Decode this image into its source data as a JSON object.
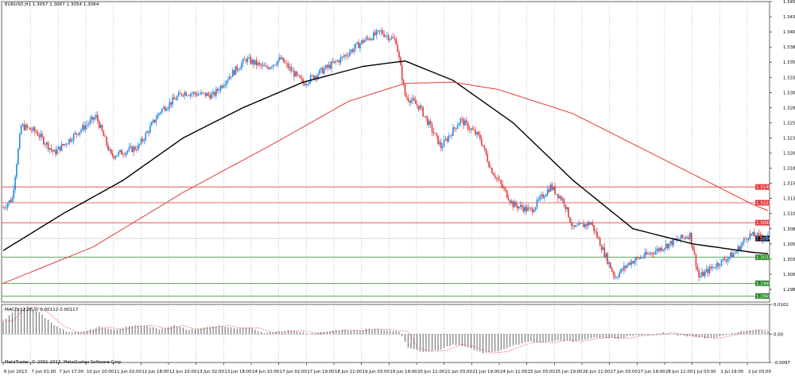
{
  "chart_data": {
    "type": "candlestick",
    "header": "EURUSD,H1  1.3057 1.3067 1.3054 1.3064",
    "price_axis": {
      "ylim": [
        1.2959,
        1.3455
      ],
      "ticks": [
        "1.3455",
        "1.3430",
        "1.3405",
        "1.3380",
        "1.3355",
        "1.3330",
        "1.3305",
        "1.3280",
        "1.3255",
        "1.3230",
        "1.3205",
        "1.3180",
        "1.3155",
        "1.3130",
        "1.3105",
        "1.3080",
        "1.3055",
        "1.3030",
        "1.3005",
        "1.2980"
      ]
    },
    "time_axis": {
      "ticks": [
        "6 Jun 2013",
        "7 Jun 01:00",
        "7 Jun 17:00",
        "10 Jun 10:00",
        "11 Jun 02:00",
        "11 Jun 18:00",
        "12 Jun 10:00",
        "13 Jun 02:00",
        "13 Jun 18:00",
        "14 Jun 10:00",
        "17 Jun 02:00",
        "17 Jun 19:00",
        "18 Jun 11:00",
        "19 Jun 03:00",
        "19 Jun 19:00",
        "20 Jun 11:00",
        "21 Jun 03:00",
        "21 Jun 19:00",
        "24 Jun 11:00",
        "25 Jun 03:00",
        "25 Jun 19:00",
        "26 Jun 11:00",
        "27 Jun 03:00",
        "27 Jun 19:00",
        "28 Jun 11:00",
        "1 Jul 03:00",
        "1 Jul 19:00",
        "2 Jul 03:00"
      ]
    },
    "grid": true,
    "horizontal_levels": [
      {
        "label": "1.3149",
        "value": 1.3149,
        "color": "#e23b3b"
      },
      {
        "label": "1.3123",
        "value": 1.3123,
        "color": "#e23b3b"
      },
      {
        "label": "1.3090",
        "value": 1.309,
        "color": "#e23b3b"
      },
      {
        "label": "1.3033",
        "value": 1.3033,
        "color": "#2e8b2e"
      },
      {
        "label": "1.2990",
        "value": 1.299,
        "color": "#2e8b2e"
      },
      {
        "label": "1.2969",
        "value": 1.2969,
        "color": "#2e8b2e"
      }
    ],
    "current_price": {
      "label": "1.3064",
      "value": 1.3064
    },
    "candles_keypoints": [
      [
        0,
        1.3115
      ],
      [
        6,
        1.313
      ],
      [
        12,
        1.325
      ],
      [
        22,
        1.324
      ],
      [
        34,
        1.3205
      ],
      [
        50,
        1.324
      ],
      [
        62,
        1.3265
      ],
      [
        72,
        1.32
      ],
      [
        90,
        1.3215
      ],
      [
        105,
        1.3275
      ],
      [
        120,
        1.3305
      ],
      [
        140,
        1.33
      ],
      [
        150,
        1.333
      ],
      [
        162,
        1.336
      ],
      [
        175,
        1.3345
      ],
      [
        185,
        1.336
      ],
      [
        200,
        1.332
      ],
      [
        212,
        1.334
      ],
      [
        225,
        1.336
      ],
      [
        240,
        1.339
      ],
      [
        252,
        1.3405
      ],
      [
        262,
        1.339
      ],
      [
        268,
        1.33
      ],
      [
        278,
        1.328
      ],
      [
        292,
        1.3215
      ],
      [
        305,
        1.326
      ],
      [
        318,
        1.323
      ],
      [
        325,
        1.318
      ],
      [
        340,
        1.312
      ],
      [
        352,
        1.311
      ],
      [
        365,
        1.315
      ],
      [
        374,
        1.3125
      ],
      [
        380,
        1.308
      ],
      [
        392,
        1.309
      ],
      [
        400,
        1.3045
      ],
      [
        408,
        1.3
      ],
      [
        418,
        1.3025
      ],
      [
        432,
        1.304
      ],
      [
        448,
        1.306
      ],
      [
        458,
        1.307
      ],
      [
        464,
        1.3
      ],
      [
        475,
        1.302
      ],
      [
        488,
        1.304
      ],
      [
        497,
        1.307
      ],
      [
        510,
        1.3064
      ]
    ],
    "series": [
      {
        "name": "",
        "color": "#000000",
        "keypoints": [
          [
            0,
            1.3044
          ],
          [
            40,
            1.3105
          ],
          [
            80,
            1.316
          ],
          [
            120,
            1.323
          ],
          [
            160,
            1.328
          ],
          [
            200,
            1.3322
          ],
          [
            240,
            1.3348
          ],
          [
            268,
            1.3357
          ],
          [
            300,
            1.3325
          ],
          [
            340,
            1.3255
          ],
          [
            380,
            1.316
          ],
          [
            420,
            1.308
          ],
          [
            460,
            1.3055
          ],
          [
            500,
            1.3041
          ],
          [
            510,
            1.3039
          ]
        ]
      },
      {
        "name": "",
        "color": "#e23b3b",
        "keypoints": [
          [
            0,
            1.299
          ],
          [
            60,
            1.305
          ],
          [
            120,
            1.314
          ],
          [
            180,
            1.322
          ],
          [
            230,
            1.329
          ],
          [
            268,
            1.332
          ],
          [
            300,
            1.3322
          ],
          [
            330,
            1.331
          ],
          [
            380,
            1.327
          ],
          [
            420,
            1.322
          ],
          [
            460,
            1.317
          ],
          [
            500,
            1.312
          ],
          [
            510,
            1.311
          ]
        ]
      }
    ],
    "macd": {
      "label": "MACD(12,26,9) 0.00112 0.00117",
      "ylim": [
        -0.0097,
        0.0102
      ],
      "ticks": [
        "0.0102",
        "0.00",
        "-0.0097"
      ],
      "histogram_keypoints": [
        [
          0,
          0.0045
        ],
        [
          8,
          0.0085
        ],
        [
          16,
          0.0095
        ],
        [
          24,
          0.0075
        ],
        [
          34,
          0.003
        ],
        [
          44,
          0.0005
        ],
        [
          54,
          0.001
        ],
        [
          64,
          0.0025
        ],
        [
          74,
          0.0015
        ],
        [
          84,
          0.0028
        ],
        [
          94,
          0.003
        ],
        [
          104,
          0.0018
        ],
        [
          114,
          0.003
        ],
        [
          124,
          0.0015
        ],
        [
          134,
          0.0022
        ],
        [
          144,
          0.003
        ],
        [
          154,
          0.002
        ],
        [
          164,
          0.0022
        ],
        [
          174,
          0.0005
        ],
        [
          184,
          0.001
        ],
        [
          194,
          0.0012
        ],
        [
          204,
          0.0002
        ],
        [
          214,
          0.0008
        ],
        [
          224,
          0.0015
        ],
        [
          234,
          0.0012
        ],
        [
          244,
          0.0018
        ],
        [
          254,
          0.0015
        ],
        [
          264,
          0.001
        ],
        [
          270,
          -0.0045
        ],
        [
          280,
          -0.006
        ],
        [
          290,
          -0.0055
        ],
        [
          300,
          -0.0035
        ],
        [
          310,
          -0.0045
        ],
        [
          320,
          -0.0065
        ],
        [
          330,
          -0.006
        ],
        [
          340,
          -0.004
        ],
        [
          350,
          -0.0025
        ],
        [
          360,
          -0.003
        ],
        [
          370,
          -0.002
        ],
        [
          380,
          -0.0025
        ],
        [
          390,
          -0.0015
        ],
        [
          400,
          -0.001
        ],
        [
          410,
          -0.0015
        ],
        [
          420,
          -0.0005
        ],
        [
          430,
          -0.0002
        ],
        [
          440,
          0.0005
        ],
        [
          450,
          -0.0003
        ],
        [
          460,
          -0.0008
        ],
        [
          470,
          -0.0015
        ],
        [
          480,
          -0.0005
        ],
        [
          490,
          0.0008
        ],
        [
          500,
          0.0015
        ],
        [
          510,
          0.0012
        ]
      ]
    }
  },
  "footer": "MetaTrader, © 2001-2013, MetaQuotes Software Corp."
}
